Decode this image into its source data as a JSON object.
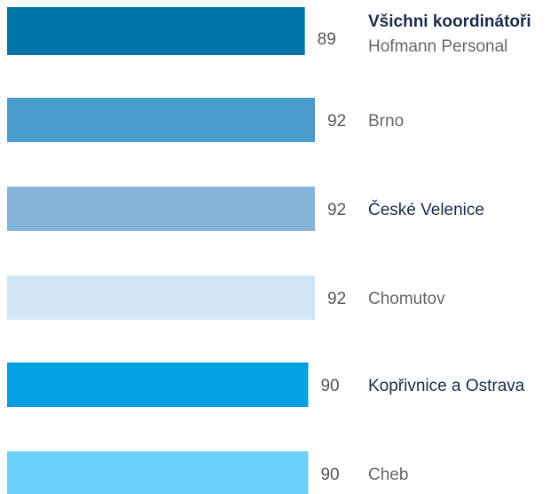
{
  "chart_data": {
    "type": "barh",
    "categories": [
      "Všichni koordinátoři",
      "Brno",
      "České Velenice",
      "Chomutov",
      "Kopřivnice a Ostrava",
      "Cheb"
    ],
    "sublabel": "Hofmann Personal",
    "values": [
      89,
      92,
      92,
      92,
      90,
      90
    ],
    "colors": [
      "#0076a8",
      "#4a9ccc",
      "#86b4d8",
      "#d3e6f6",
      "#00a0e3",
      "#6bd0fb"
    ],
    "label_colors": [
      "#1b2a4a",
      "#666666",
      "#1b2a4a",
      "#666666",
      "#1b2a4a",
      "#666666"
    ]
  }
}
